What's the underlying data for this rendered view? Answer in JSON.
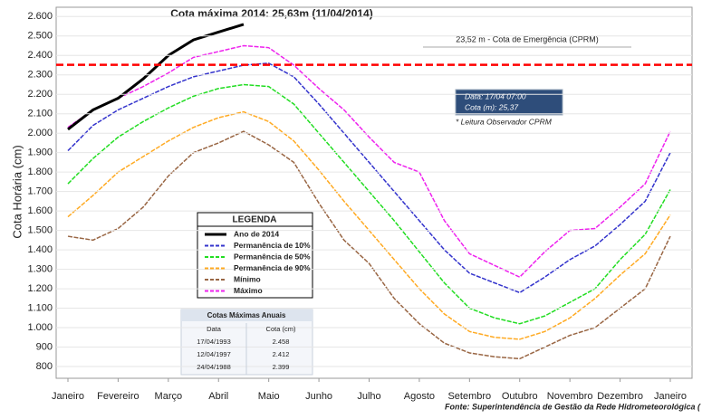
{
  "chart_data": {
    "type": "line",
    "title": "Cota máxima 2014: 25,63m (11/04/2014)",
    "y_label": "Cota Horária (cm)",
    "source": "Fonte: Superintendência de Gestão da Rede Hidrometeorológica (",
    "emergency_label": "23,52 m - Cota de Emergência (CPRM)",
    "emergency_level": 2352,
    "emergency_color": "#ff0000",
    "callout": [
      "Data:      17/04 07:00",
      "Cota (m):  25,37"
    ],
    "callout_note": "* Leitura Observador CPRM",
    "legend_title": "LEGENDA",
    "categories": [
      "Janeiro",
      null,
      "Fevereiro",
      null,
      "Março",
      null,
      "Abril",
      null,
      "Maio",
      null,
      "Junho",
      null,
      "Julho",
      null,
      "Agosto",
      null,
      "Setembro",
      null,
      "Outubro",
      null,
      "Novembro",
      null,
      "Dezembro",
      null,
      "Janeiro"
    ],
    "ylim": [
      800,
      2620
    ],
    "yticks": [
      800,
      900,
      {
        "value": 1000,
        "label": "1.000"
      },
      {
        "value": 1100,
        "label": "1.100"
      },
      {
        "value": 1200,
        "label": "1.200"
      },
      {
        "value": 1300,
        "label": "1.300"
      },
      {
        "value": 1400,
        "label": "1.400"
      },
      {
        "value": 1500,
        "label": "1.500"
      },
      {
        "value": 1600,
        "label": "1.600"
      },
      {
        "value": 1700,
        "label": "1.700"
      },
      {
        "value": 1800,
        "label": "1.800"
      },
      {
        "value": 1900,
        "label": "1.900"
      },
      {
        "value": 2000,
        "label": "2.000"
      },
      {
        "value": 2100,
        "label": "2.100"
      },
      {
        "value": 2200,
        "label": "2.200"
      },
      {
        "value": 2300,
        "label": "2.300"
      },
      {
        "value": 2400,
        "label": "2.400"
      },
      {
        "value": 2500,
        "label": "2.500"
      },
      {
        "value": 2600,
        "label": "2.600"
      }
    ],
    "grid": true,
    "series": [
      {
        "name": "Ano de 2014",
        "color": "#000000",
        "width": 3,
        "values": [
          2020,
          2120,
          2180,
          2280,
          2400,
          2480,
          2520,
          2560,
          null,
          null,
          null,
          null,
          null,
          null,
          null,
          null,
          null,
          null,
          null,
          null,
          null,
          null,
          null,
          null,
          null
        ]
      },
      {
        "name": "Permanência de 10%",
        "color": "#3333cc",
        "width": 1.5,
        "values": [
          1910,
          2040,
          2120,
          2180,
          2240,
          2290,
          2320,
          2350,
          2360,
          2290,
          2150,
          2000,
          1850,
          1700,
          1550,
          1400,
          1280,
          1230,
          1180,
          1260,
          1350,
          1420,
          1530,
          1650,
          1900
        ]
      },
      {
        "name": "Permanência de 50%",
        "color": "#22dd22",
        "width": 1.5,
        "values": [
          1740,
          1870,
          1980,
          2060,
          2130,
          2190,
          2230,
          2250,
          2240,
          2150,
          2000,
          1850,
          1700,
          1550,
          1390,
          1230,
          1100,
          1050,
          1020,
          1060,
          1130,
          1200,
          1350,
          1480,
          1710
        ]
      },
      {
        "name": "Permanência de 90%",
        "color": "#ffaa22",
        "width": 1.5,
        "values": [
          1570,
          1680,
          1800,
          1880,
          1960,
          2030,
          2080,
          2110,
          2060,
          1960,
          1810,
          1650,
          1500,
          1350,
          1200,
          1070,
          980,
          950,
          940,
          980,
          1050,
          1150,
          1270,
          1380,
          1580
        ]
      },
      {
        "name": "Mínimo",
        "color": "#996644",
        "width": 1.5,
        "values": [
          1470,
          1450,
          1510,
          1620,
          1780,
          1900,
          1950,
          2010,
          1940,
          1850,
          1640,
          1450,
          1330,
          1150,
          1020,
          920,
          870,
          850,
          840,
          900,
          960,
          1000,
          1100,
          1200,
          1470
        ]
      },
      {
        "name": "Máximo",
        "color": "#ee22ee",
        "width": 1.5,
        "values": [
          2030,
          2120,
          2180,
          2240,
          2310,
          2390,
          2420,
          2450,
          2440,
          2350,
          2230,
          2120,
          1980,
          1850,
          1800,
          1550,
          1380,
          1320,
          1260,
          1390,
          1500,
          1510,
          1620,
          1740,
          2010
        ]
      }
    ],
    "table": {
      "title": "Cotas Máximas Anuais",
      "headers": [
        "Data",
        "Cota (cm)"
      ],
      "rows": [
        [
          "17/04/1993",
          "2.458"
        ],
        [
          "12/04/1997",
          "2.412"
        ],
        [
          "24/04/1988",
          "2.399"
        ]
      ]
    }
  }
}
